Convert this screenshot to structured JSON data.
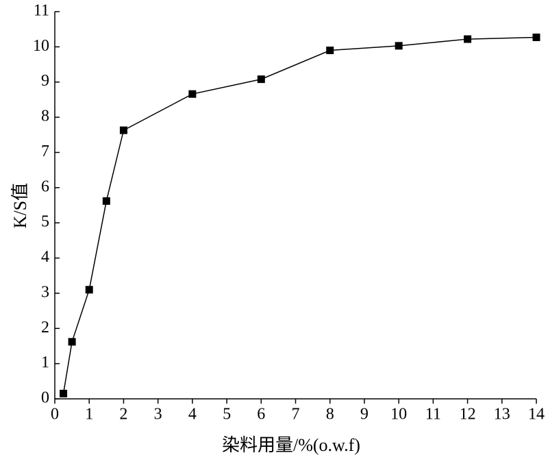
{
  "chart_data": {
    "type": "line",
    "x_label": "染料用量/%(o.w.f)",
    "y_label": "K/S值",
    "x": [
      0.25,
      0.5,
      1,
      1.5,
      2,
      4,
      6,
      8,
      10,
      12,
      14
    ],
    "series": [
      {
        "color": "#000000",
        "values": [
          0.15,
          1.62,
          3.1,
          5.62,
          7.63,
          8.66,
          9.08,
          9.9,
          10.03,
          10.22,
          10.27
        ]
      }
    ],
    "xlim": [
      0,
      14
    ],
    "xticks": [
      0,
      1,
      2,
      3,
      4,
      5,
      6,
      7,
      8,
      9,
      10,
      11,
      12,
      13,
      14
    ],
    "ylim": [
      0,
      11
    ],
    "yticks": [
      0,
      1,
      2,
      3,
      4,
      5,
      6,
      7,
      8,
      9,
      10,
      11
    ]
  }
}
